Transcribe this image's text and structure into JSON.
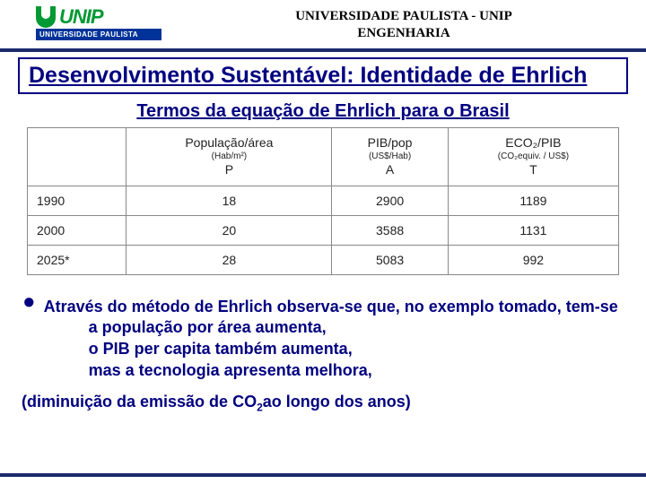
{
  "header": {
    "logo": {
      "word": "UNIP",
      "subtitle": "UNIVERSIDADE PAULISTA"
    },
    "line1": "UNIVERSIDADE PAULISTA - UNIP",
    "line2": "ENGENHARIA"
  },
  "title": "Desenvolvimento Sustentável: Identidade de Ehrlich",
  "subtitle": "Termos da equação de Ehrlich para o Brasil",
  "table": {
    "headers": [
      {
        "main": "",
        "sub": "",
        "sym": ""
      },
      {
        "main": "População/área",
        "sub": "(Hab/m²)",
        "sym": "P"
      },
      {
        "main": "PIB/pop",
        "sub": "(US$/Hab)",
        "sym": "A"
      },
      {
        "main": "ECO₂/PIB",
        "sub": "(CO₂equiv. / US$)",
        "sym": "T"
      }
    ],
    "rows": [
      {
        "year": "1990",
        "p": "18",
        "a": "2900",
        "t": "1189"
      },
      {
        "year": "2000",
        "p": "20",
        "a": "3588",
        "t": "1131"
      },
      {
        "year": "2025*",
        "p": "28",
        "a": "5083",
        "t": "992"
      }
    ]
  },
  "bullet": {
    "line1": "Através do método de Ehrlich observa-se que, no exemplo tomado, tem-se",
    "l2": "a população por área aumenta,",
    "l3": "o PIB per capita também aumenta,",
    "l4": "mas a tecnologia apresenta melhora,"
  },
  "footer": {
    "pre": "(diminuição da emissão de CO",
    "sub": "2",
    "post": "ao longo dos anos)"
  }
}
